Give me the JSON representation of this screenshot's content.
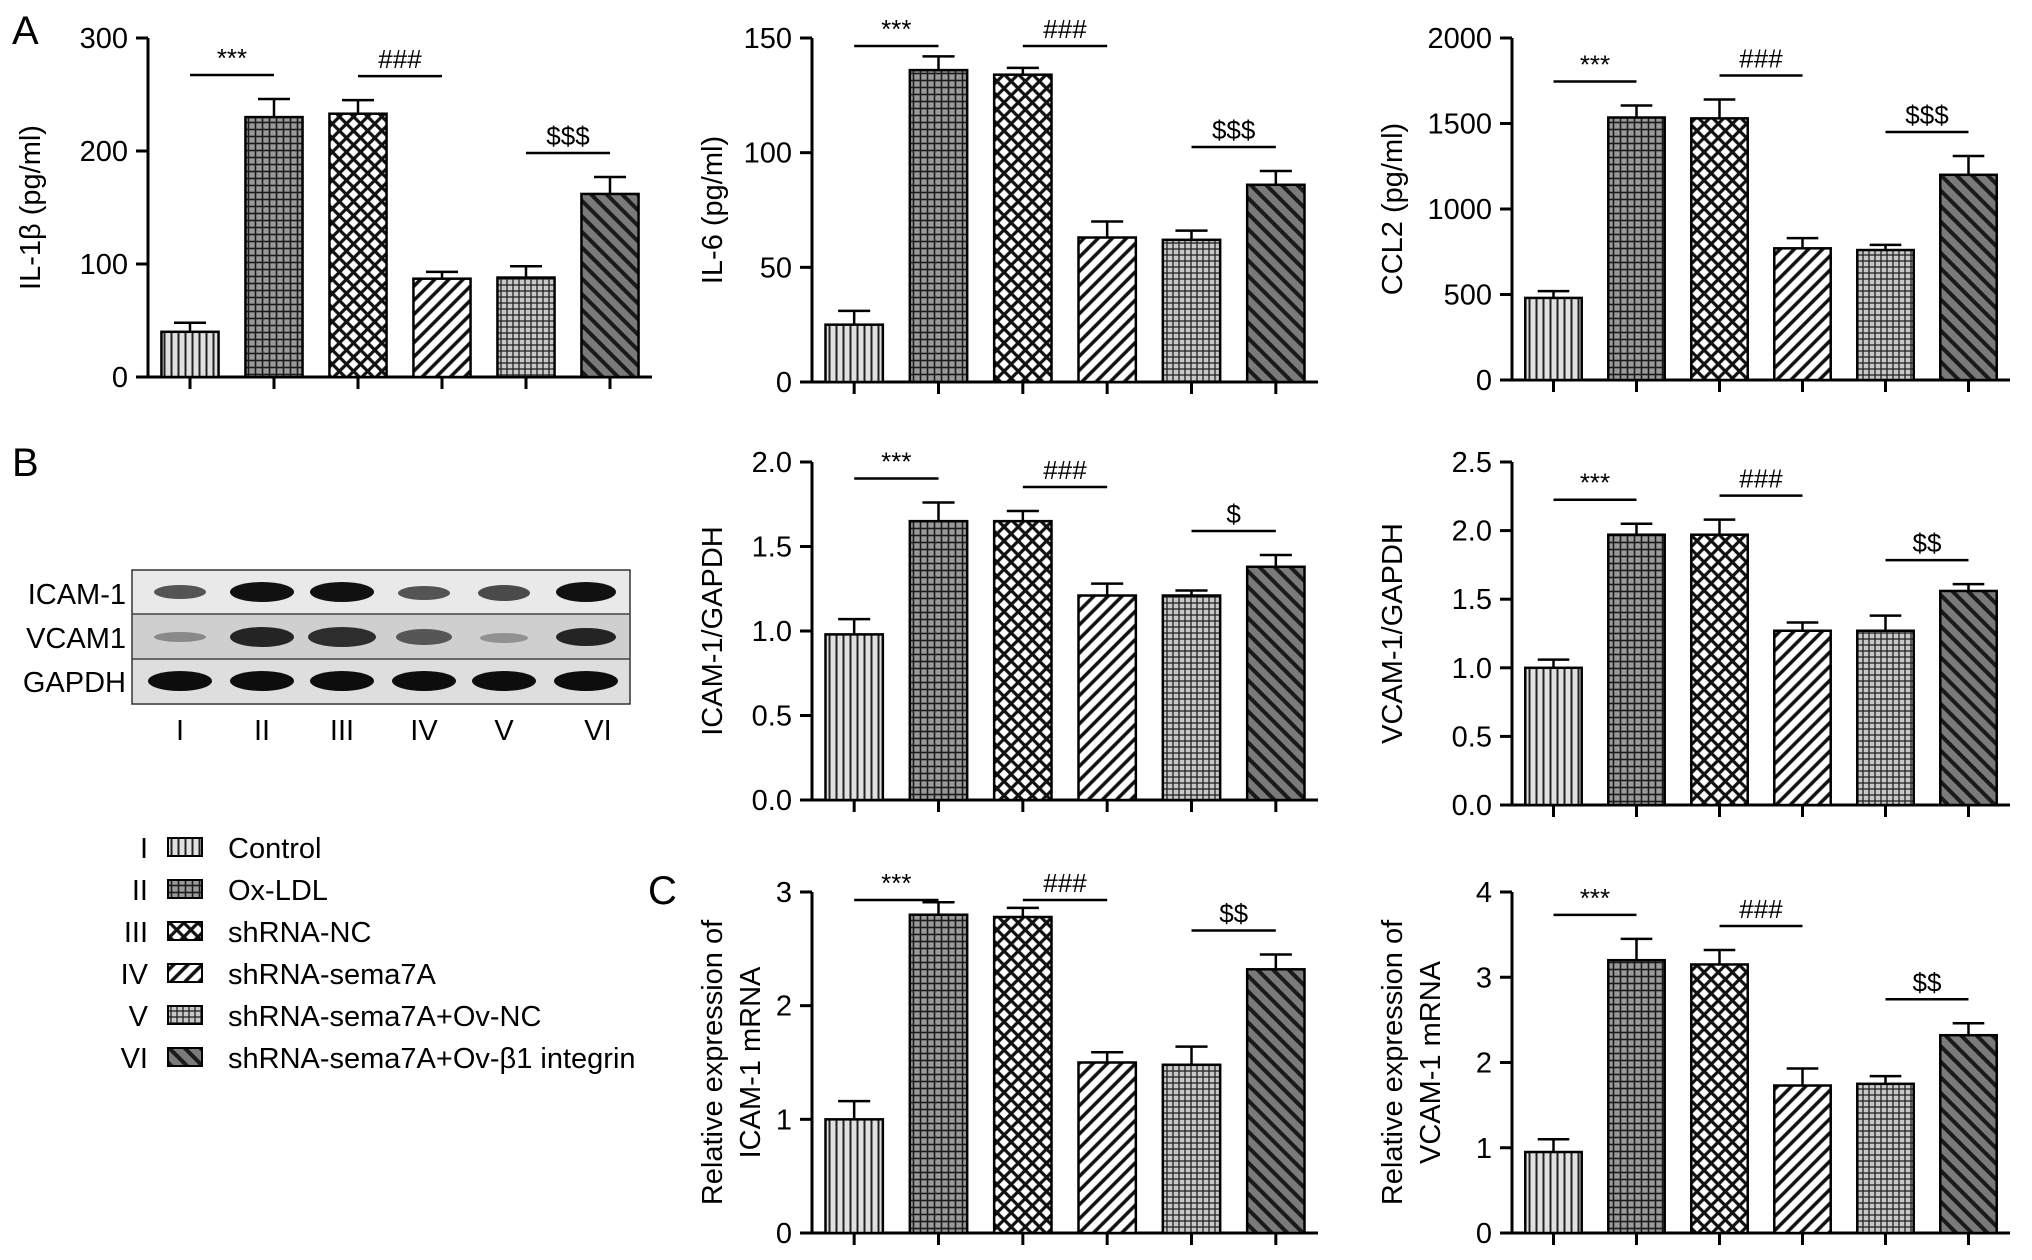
{
  "panel_labels": {
    "a": "A",
    "b": "B",
    "c": "C"
  },
  "group_ids": [
    "I",
    "II",
    "III",
    "IV",
    "V",
    "VI"
  ],
  "legend": {
    "roman": [
      "I",
      "II",
      "III",
      "IV",
      "V",
      "VI"
    ],
    "labels": [
      "Control",
      "Ox-LDL",
      "shRNA-NC",
      "shRNA-sema7A",
      "shRNA-sema7A+Ov-NC",
      "shRNA-sema7A+Ov-β1 integrin"
    ]
  },
  "western_blot": {
    "rows": [
      "ICAM-1",
      "VCAM1",
      "GAPDH"
    ],
    "lanes": [
      "I",
      "II",
      "III",
      "IV",
      "V",
      "VI"
    ]
  },
  "chart_data": [
    {
      "id": "il1b",
      "type": "bar",
      "title": "",
      "categories": [
        "I",
        "II",
        "III",
        "IV",
        "V",
        "VI"
      ],
      "ylabel_lines": [
        "IL-1β (pg/ml)"
      ],
      "ylim": [
        0,
        300
      ],
      "yticks": [
        0,
        100,
        200,
        300
      ],
      "values": [
        40,
        230,
        233,
        87,
        88,
        162
      ],
      "errors": [
        8,
        16,
        12,
        6,
        10,
        15
      ],
      "significance": [
        {
          "from": 0,
          "to": 1,
          "label": "***"
        },
        {
          "from": 2,
          "to": 3,
          "label": "###"
        },
        {
          "from": 4,
          "to": 5,
          "label": "$$$"
        }
      ]
    },
    {
      "id": "il6",
      "type": "bar",
      "title": "",
      "categories": [
        "I",
        "II",
        "III",
        "IV",
        "V",
        "VI"
      ],
      "ylabel_lines": [
        "IL-6 (pg/ml)"
      ],
      "ylim": [
        0,
        150
      ],
      "yticks": [
        0,
        50,
        100,
        150
      ],
      "values": [
        25,
        136,
        134,
        63,
        62,
        86
      ],
      "errors": [
        6,
        6,
        3,
        7,
        4,
        6
      ],
      "significance": [
        {
          "from": 0,
          "to": 1,
          "label": "***"
        },
        {
          "from": 2,
          "to": 3,
          "label": "###"
        },
        {
          "from": 4,
          "to": 5,
          "label": "$$$"
        }
      ]
    },
    {
      "id": "ccl2",
      "type": "bar",
      "title": "",
      "categories": [
        "I",
        "II",
        "III",
        "IV",
        "V",
        "VI"
      ],
      "ylabel_lines": [
        "CCL2 (pg/ml)"
      ],
      "ylim": [
        0,
        2000
      ],
      "yticks": [
        0,
        500,
        1000,
        1500,
        2000
      ],
      "values": [
        480,
        1535,
        1530,
        770,
        760,
        1200
      ],
      "errors": [
        40,
        70,
        110,
        60,
        30,
        110
      ],
      "significance": [
        {
          "from": 0,
          "to": 1,
          "label": "***"
        },
        {
          "from": 2,
          "to": 3,
          "label": "###"
        },
        {
          "from": 4,
          "to": 5,
          "label": "$$$"
        }
      ]
    },
    {
      "id": "icam_gapdh",
      "type": "bar",
      "title": "",
      "categories": [
        "I",
        "II",
        "III",
        "IV",
        "V",
        "VI"
      ],
      "ylabel_lines": [
        "ICAM-1/GAPDH"
      ],
      "ylim": [
        0,
        2.0
      ],
      "yticks": [
        "0.0",
        "0.5",
        "1.0",
        "1.5",
        "2.0"
      ],
      "values": [
        0.98,
        1.65,
        1.65,
        1.21,
        1.21,
        1.38
      ],
      "errors": [
        0.09,
        0.11,
        0.06,
        0.07,
        0.03,
        0.07
      ],
      "significance": [
        {
          "from": 0,
          "to": 1,
          "label": "***"
        },
        {
          "from": 2,
          "to": 3,
          "label": "###"
        },
        {
          "from": 4,
          "to": 5,
          "label": "$"
        }
      ]
    },
    {
      "id": "vcam_gapdh",
      "type": "bar",
      "title": "",
      "categories": [
        "I",
        "II",
        "III",
        "IV",
        "V",
        "VI"
      ],
      "ylabel_lines": [
        "VCAM-1/GAPDH"
      ],
      "ylim": [
        0,
        2.5
      ],
      "yticks": [
        "0.0",
        "0.5",
        "1.0",
        "1.5",
        "2.0",
        "2.5"
      ],
      "values": [
        1.0,
        1.97,
        1.97,
        1.27,
        1.27,
        1.56
      ],
      "errors": [
        0.06,
        0.08,
        0.11,
        0.06,
        0.11,
        0.05
      ],
      "significance": [
        {
          "from": 0,
          "to": 1,
          "label": "***"
        },
        {
          "from": 2,
          "to": 3,
          "label": "###"
        },
        {
          "from": 4,
          "to": 5,
          "label": "$$"
        }
      ]
    },
    {
      "id": "icam_mrna",
      "type": "bar",
      "title": "",
      "categories": [
        "I",
        "II",
        "III",
        "IV",
        "V",
        "VI"
      ],
      "ylabel_lines": [
        "Relative expression of",
        "ICAM-1 mRNA"
      ],
      "ylim": [
        0,
        3
      ],
      "yticks": [
        0,
        1,
        2,
        3
      ],
      "values": [
        1.0,
        2.8,
        2.78,
        1.5,
        1.48,
        2.32
      ],
      "errors": [
        0.16,
        0.11,
        0.08,
        0.09,
        0.16,
        0.13
      ],
      "significance": [
        {
          "from": 0,
          "to": 1,
          "label": "***"
        },
        {
          "from": 2,
          "to": 3,
          "label": "###"
        },
        {
          "from": 4,
          "to": 5,
          "label": "$$"
        }
      ]
    },
    {
      "id": "vcam_mrna",
      "type": "bar",
      "title": "",
      "categories": [
        "I",
        "II",
        "III",
        "IV",
        "V",
        "VI"
      ],
      "ylabel_lines": [
        "Relative expression of",
        "VCAM-1 mRNA"
      ],
      "ylim": [
        0,
        4
      ],
      "yticks": [
        0,
        1,
        2,
        3,
        4
      ],
      "values": [
        0.95,
        3.2,
        3.15,
        1.73,
        1.75,
        2.32
      ],
      "errors": [
        0.15,
        0.25,
        0.17,
        0.2,
        0.09,
        0.14
      ],
      "significance": [
        {
          "from": 0,
          "to": 1,
          "label": "***"
        },
        {
          "from": 2,
          "to": 3,
          "label": "###"
        },
        {
          "from": 4,
          "to": 5,
          "label": "$$"
        }
      ]
    }
  ]
}
